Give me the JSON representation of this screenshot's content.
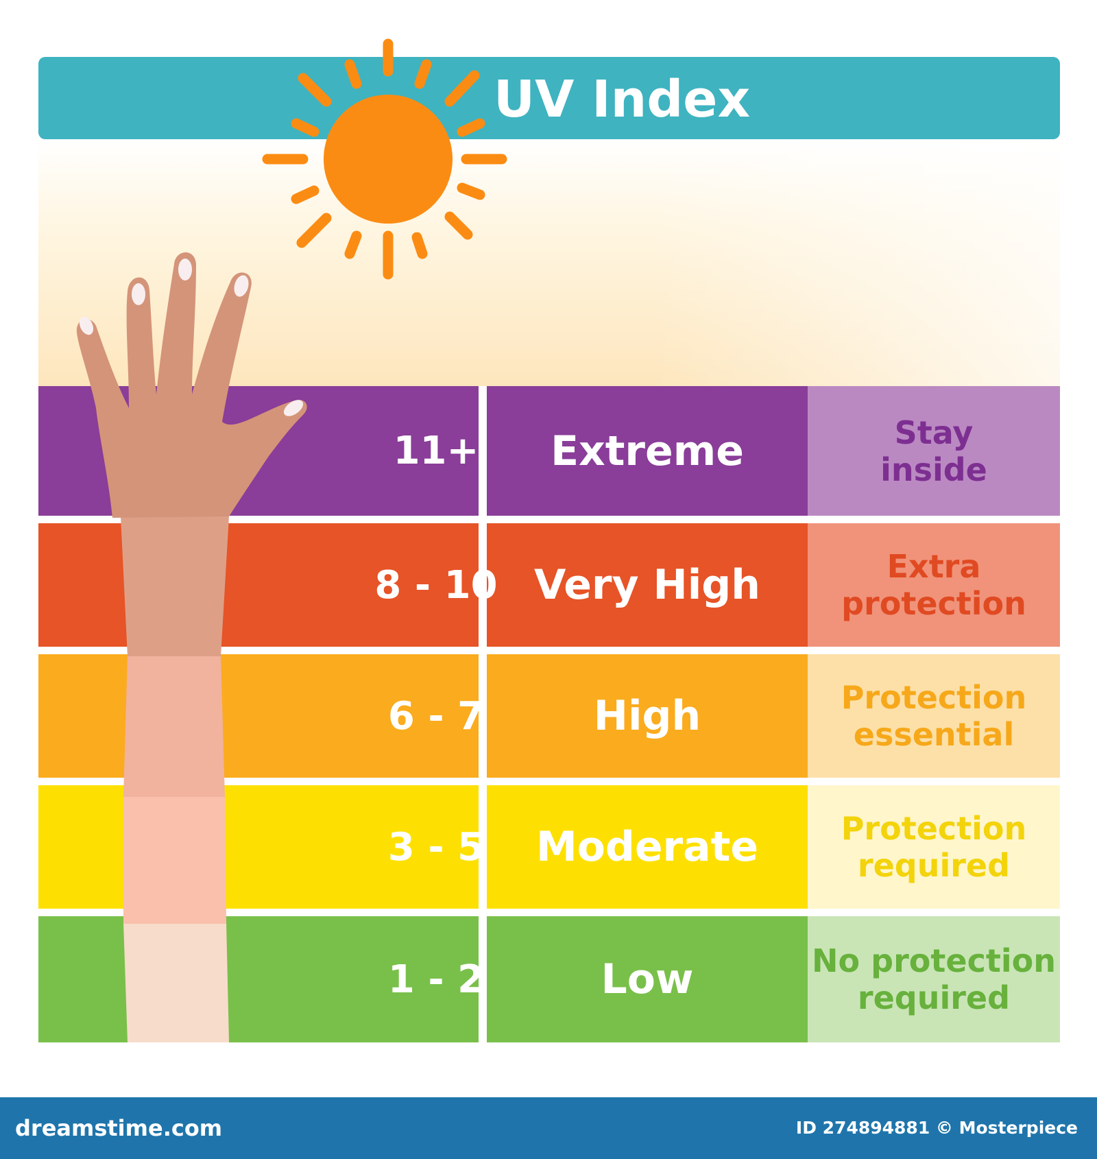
{
  "title": "UV Index",
  "levels": [
    {
      "range": "11+",
      "level": "Extreme",
      "advice": [
        "Stay",
        "inside"
      ],
      "color": "#8a3d99",
      "advice_bg": "#bb89c2",
      "advice_color": "#7d2f91"
    },
    {
      "range": "8 - 10",
      "level": "Very High",
      "advice": [
        "Extra",
        "protection"
      ],
      "color": "#e65427",
      "advice_bg": "#f0937a",
      "advice_color": "#e04a22"
    },
    {
      "range": "6 - 7",
      "level": "High",
      "advice": [
        "Protection",
        "essential"
      ],
      "color": "#fbab1e",
      "advice_bg": "#fde0a8",
      "advice_color": "#f6a81a"
    },
    {
      "range": "3 - 5",
      "level": "Moderate",
      "advice": [
        "Protection",
        "required"
      ],
      "color": "#fde002",
      "advice_bg": "#fff6cc",
      "advice_color": "#f3d30b"
    },
    {
      "range": "1 - 2",
      "level": "Low",
      "advice": [
        "No protection",
        "required"
      ],
      "color": "#79c04a",
      "advice_bg": "#c9e5b6",
      "advice_color": "#67b13c"
    }
  ],
  "watermark": {
    "site": "dreamstime.com",
    "id": "ID 274894881 © Mosterpiece"
  }
}
